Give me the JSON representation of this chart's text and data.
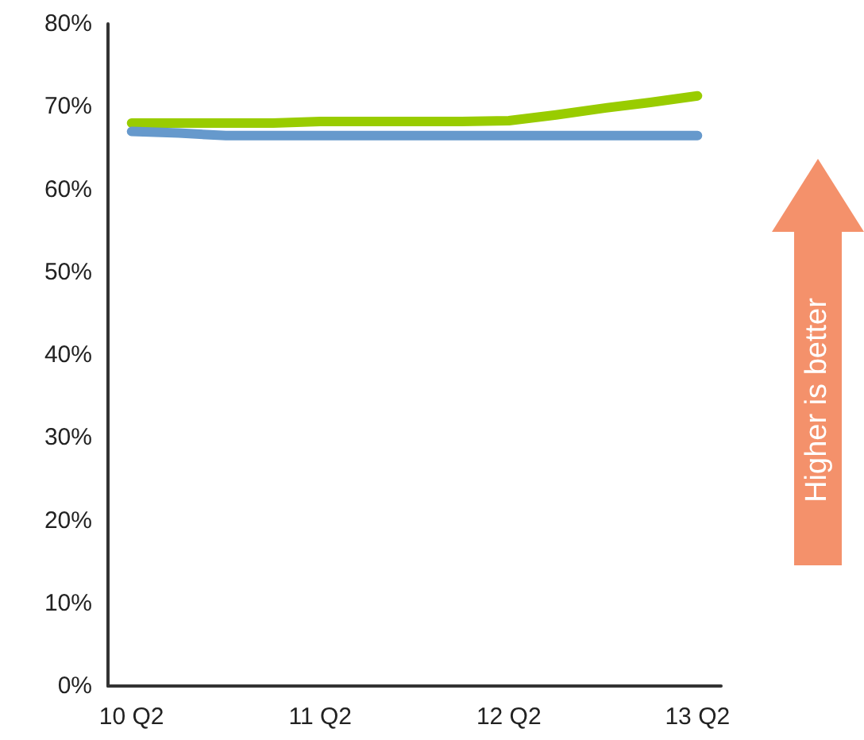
{
  "chart_data": {
    "type": "line",
    "categories": [
      "10 Q2",
      null,
      null,
      null,
      "11 Q2",
      null,
      null,
      null,
      "12 Q2",
      null,
      null,
      null,
      "13 Q2"
    ],
    "series": [
      {
        "color": "#99cc00",
        "values": [
          68.0,
          68.0,
          68.0,
          68.0,
          68.2,
          68.2,
          68.2,
          68.2,
          68.3,
          69.0,
          69.8,
          70.5,
          71.3
        ]
      },
      {
        "color": "#6699cc",
        "values": [
          67.0,
          66.8,
          66.5,
          66.5,
          66.5,
          66.5,
          66.5,
          66.5,
          66.5,
          66.5,
          66.5,
          66.5,
          66.5
        ]
      }
    ],
    "ylim": [
      0,
      80
    ],
    "yticks": [
      {
        "value": 0,
        "label": "0%"
      },
      {
        "value": 10,
        "label": "10%"
      },
      {
        "value": 20,
        "label": "20%"
      },
      {
        "value": 30,
        "label": "30%"
      },
      {
        "value": 40,
        "label": "40%"
      },
      {
        "value": 50,
        "label": "50%"
      },
      {
        "value": 60,
        "label": "60%"
      },
      {
        "value": 70,
        "label": "70%"
      },
      {
        "value": 80,
        "label": "80%"
      }
    ],
    "grid": false,
    "marker": "none",
    "line_style": "solid",
    "annotations": [
      "Higher is better"
    ]
  }
}
